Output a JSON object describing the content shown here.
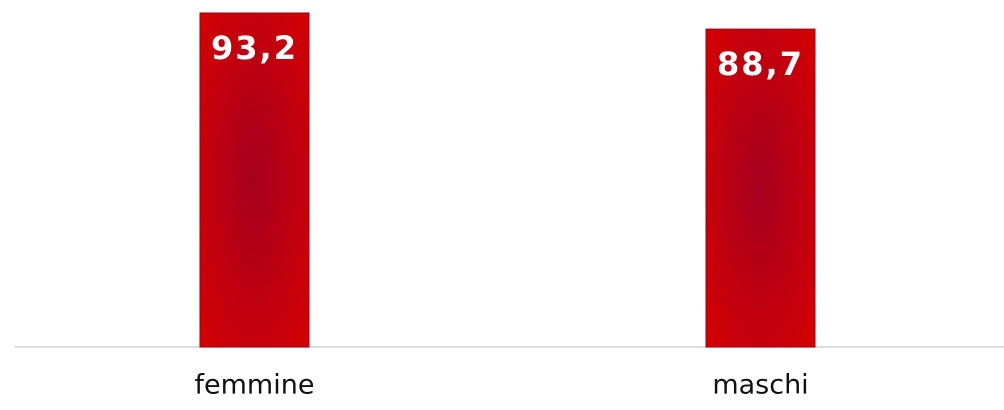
{
  "chart_data": {
    "type": "bar",
    "categories": [
      "femmine",
      "maschi"
    ],
    "values": [
      93.2,
      88.7
    ],
    "value_labels": [
      "93,2",
      "88,7"
    ],
    "color": "#d80000"
  }
}
